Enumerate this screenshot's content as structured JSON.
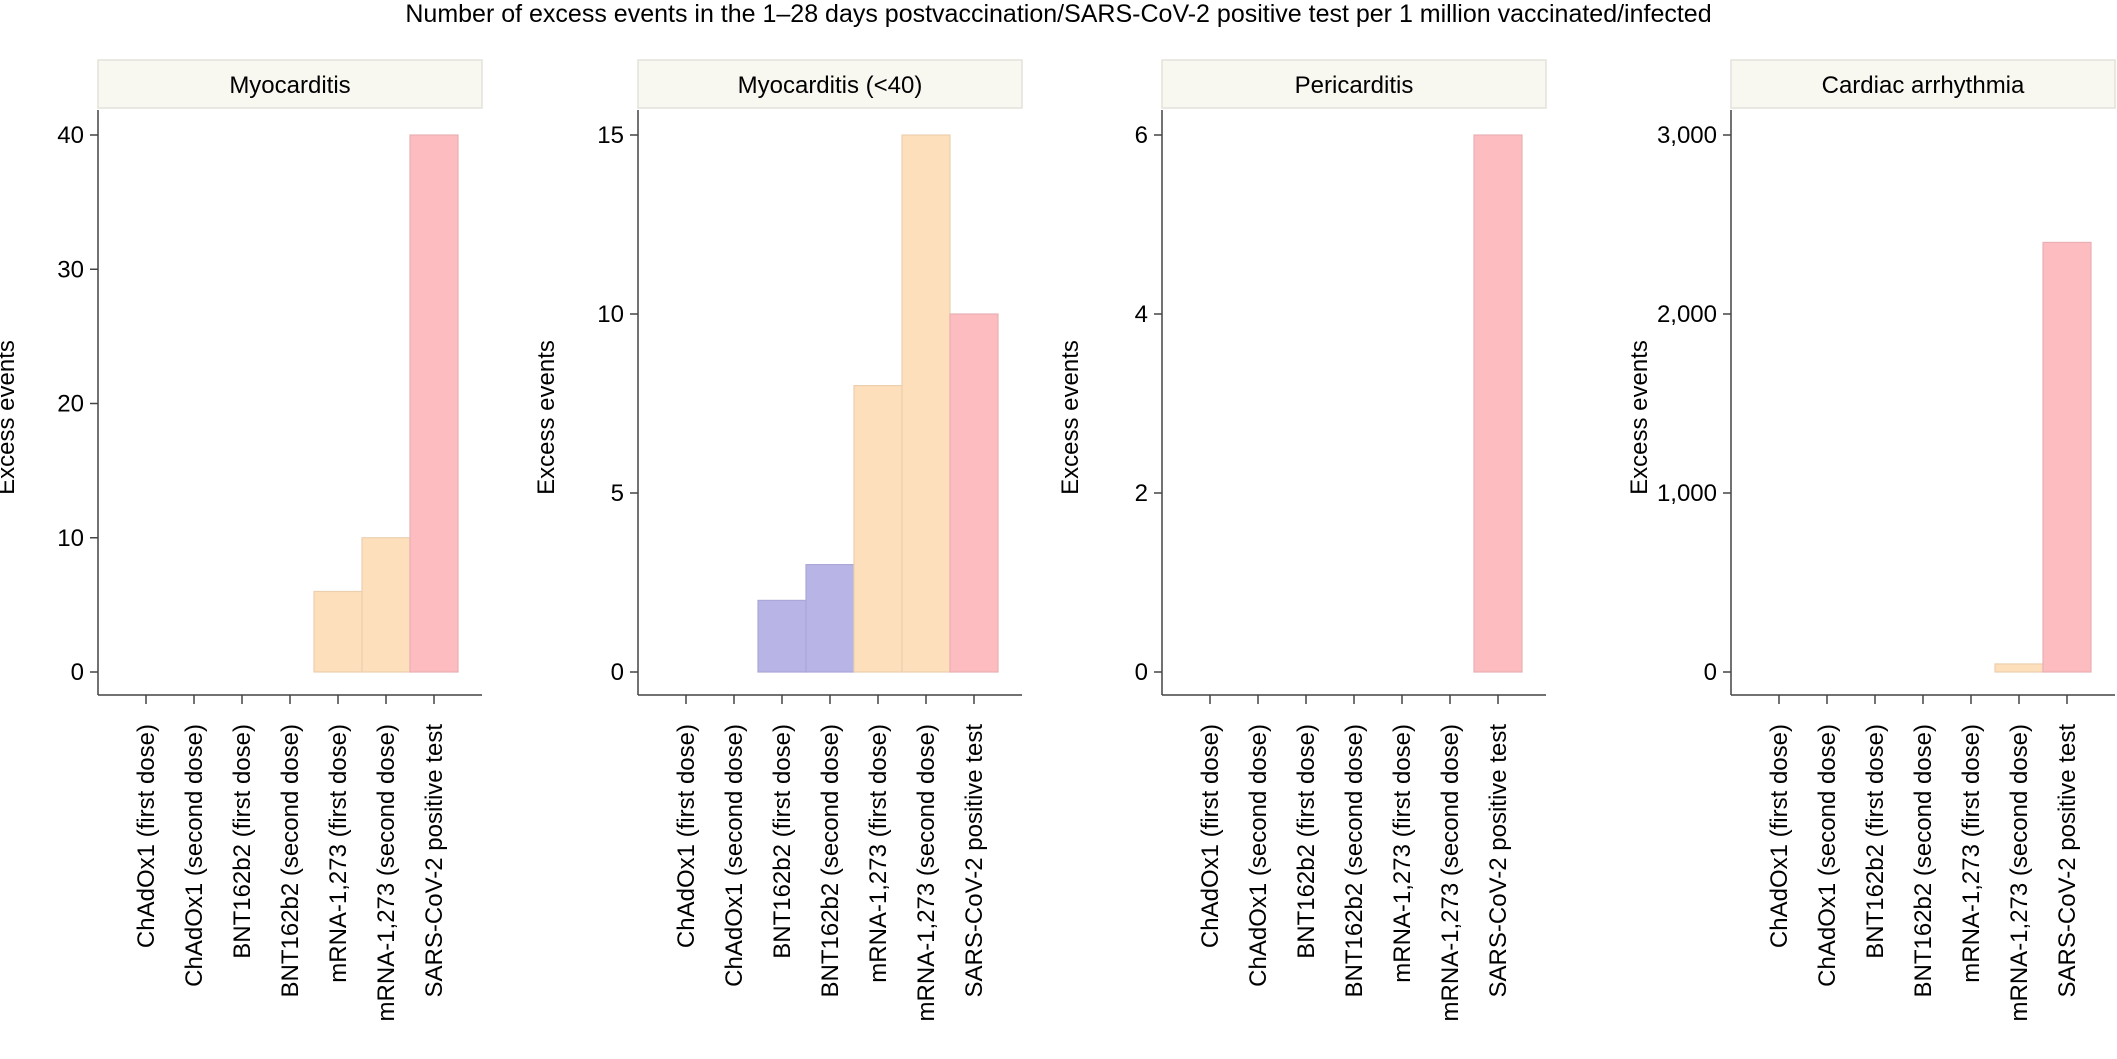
{
  "title": "Number of excess events in the 1–28 days postvaccination/SARS-CoV-2 positive test per 1 million vaccinated/infected",
  "colors": {
    "ChAdOx1": "#b8b4e6",
    "BNT162b2": "#b8b4e6",
    "mRNA-1,273": "#fddfbc",
    "SARS-CoV-2": "#fcbcc0",
    "strip_bg": "#f8f7f0"
  },
  "chart_data": [
    {
      "type": "bar",
      "title": "Myocarditis",
      "xlabel": "",
      "ylabel": "Excess events",
      "ylim": [
        0,
        40
      ],
      "yticks": [
        0,
        10,
        20,
        30,
        40
      ],
      "ytick_labels": [
        "0",
        "10",
        "20",
        "30",
        "40"
      ],
      "categories": [
        "ChAdOx1 (first dose)",
        "ChAdOx1 (second dose)",
        "BNT162b2 (first dose)",
        "BNT162b2 (second dose)",
        "mRNA-1,273 (first dose)",
        "mRNA-1,273 (second dose)",
        "SARS-CoV-2 positive test"
      ],
      "values": [
        0,
        0,
        0,
        0,
        6,
        10,
        40
      ]
    },
    {
      "type": "bar",
      "title": "Myocarditis (<40)",
      "xlabel": "",
      "ylabel": "Excess events",
      "ylim": [
        0,
        15
      ],
      "yticks": [
        0,
        5,
        10,
        15
      ],
      "ytick_labels": [
        "0",
        "5",
        "10",
        "15"
      ],
      "categories": [
        "ChAdOx1 (first dose)",
        "ChAdOx1 (second dose)",
        "BNT162b2 (first dose)",
        "BNT162b2 (second dose)",
        "mRNA-1,273 (first dose)",
        "mRNA-1,273 (second dose)",
        "SARS-CoV-2 positive test"
      ],
      "values": [
        0,
        0,
        2,
        3,
        8,
        15,
        10
      ]
    },
    {
      "type": "bar",
      "title": "Pericarditis",
      "xlabel": "",
      "ylabel": "Excess events",
      "ylim": [
        0,
        6
      ],
      "yticks": [
        0,
        2,
        4,
        6
      ],
      "ytick_labels": [
        "0",
        "2",
        "4",
        "6"
      ],
      "categories": [
        "ChAdOx1 (first dose)",
        "ChAdOx1 (second dose)",
        "BNT162b2 (first dose)",
        "BNT162b2 (second dose)",
        "mRNA-1,273 (first dose)",
        "mRNA-1,273 (second dose)",
        "SARS-CoV-2 positive test"
      ],
      "values": [
        0,
        0,
        0,
        0,
        0,
        0,
        6
      ]
    },
    {
      "type": "bar",
      "title": "Cardiac arrhythmia",
      "xlabel": "",
      "ylabel": "Excess events",
      "ylim": [
        0,
        3000
      ],
      "yticks": [
        0,
        1000,
        2000,
        3000
      ],
      "ytick_labels": [
        "0",
        "1,000",
        "2,000",
        "3,000"
      ],
      "categories": [
        "ChAdOx1 (first dose)",
        "ChAdOx1 (second dose)",
        "BNT162b2 (first dose)",
        "BNT162b2 (second dose)",
        "mRNA-1,273 (first dose)",
        "mRNA-1,273 (second dose)",
        "SARS-CoV-2 positive test"
      ],
      "values": [
        0,
        0,
        0,
        0,
        0,
        45,
        2400
      ]
    }
  ]
}
